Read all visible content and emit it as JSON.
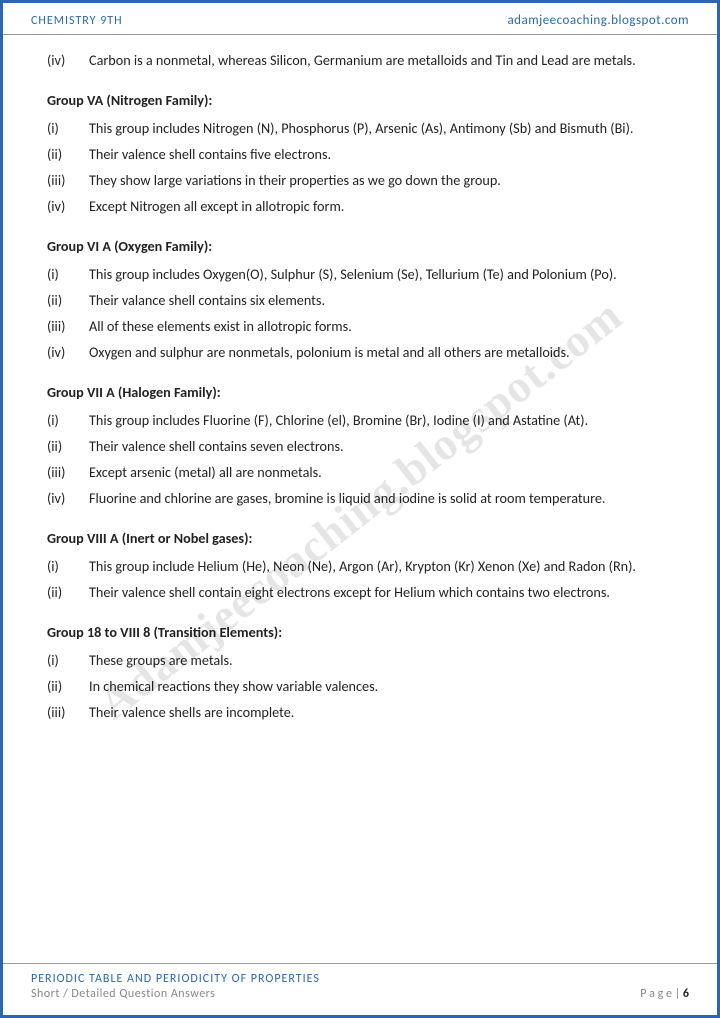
{
  "header": {
    "left": "CHEMISTRY 9TH",
    "right": "adamjeecoaching.blogspot.com"
  },
  "footer": {
    "title": "PERIODIC TABLE AND PERIODICITY OF PROPERTIES",
    "sub": "Short / Detailed Question Answers",
    "pageLabel": "P a g e  | ",
    "pageNum": "6"
  },
  "watermark": "Adamjeecoaching.blogspot.com",
  "sections": [
    {
      "heading": "",
      "items": [
        {
          "n": "(iv)",
          "t": "Carbon is a nonmetal, whereas Silicon, Germanium are metalloids and Tin and Lead are metals."
        }
      ]
    },
    {
      "heading": "Group VA (Nitrogen Family):",
      "items": [
        {
          "n": "(i)",
          "t": "This group includes Nitrogen (N), Phosphorus (P), Arsenic (As), Antimony (Sb) and Bismuth (Bi)."
        },
        {
          "n": "(ii)",
          "t": "Their valence shell contains five electrons."
        },
        {
          "n": "(iii)",
          "t": "They show large variations in their properties as we go down the group."
        },
        {
          "n": "(iv)",
          "t": "Except Nitrogen all except in allotropic form."
        }
      ]
    },
    {
      "heading": "Group VI A (Oxygen Family):",
      "items": [
        {
          "n": "(i)",
          "t": "This group includes Oxygen(O), Sulphur (S), Selenium (Se), Tellurium (Te) and Polonium (Po)."
        },
        {
          "n": "(ii)",
          "t": "Their valance shell contains six elements."
        },
        {
          "n": "(iii)",
          "t": "All of these elements exist in allotropic forms."
        },
        {
          "n": "(iv)",
          "t": "Oxygen and sulphur are nonmetals, polonium is metal and all others are metalloids."
        }
      ]
    },
    {
      "heading": "Group VII A (Halogen Family):",
      "items": [
        {
          "n": "(i)",
          "t": "This group includes Fluorine (F), Chlorine (el), Bromine (Br), Iodine (I) and Astatine (At)."
        },
        {
          "n": "(ii)",
          "t": "Their valence shell contains seven electrons."
        },
        {
          "n": "(iii)",
          "t": "Except arsenic (metal) all are nonmetals."
        },
        {
          "n": "(iv)",
          "t": "Fluorine and chlorine are gases, bromine is liquid and iodine is solid at room temperature."
        }
      ]
    },
    {
      "heading": "Group VIII A (Inert or Nobel gases):",
      "items": [
        {
          "n": "(i)",
          "t": "This group include Helium (He), Neon (Ne), Argon (Ar), Krypton (Kr) Xenon (Xe) and Radon (Rn)."
        },
        {
          "n": "(ii)",
          "t": "Their valence shell contain eight electrons except for Helium which contains two electrons."
        }
      ]
    },
    {
      "heading": "Group 18 to VIII 8 (Transition Elements):",
      "items": [
        {
          "n": "(i)",
          "t": "These groups are metals."
        },
        {
          "n": "(ii)",
          "t": "In chemical reactions they show variable valences."
        },
        {
          "n": "(iii)",
          "t": "Their valence shells are incomplete."
        }
      ]
    }
  ]
}
